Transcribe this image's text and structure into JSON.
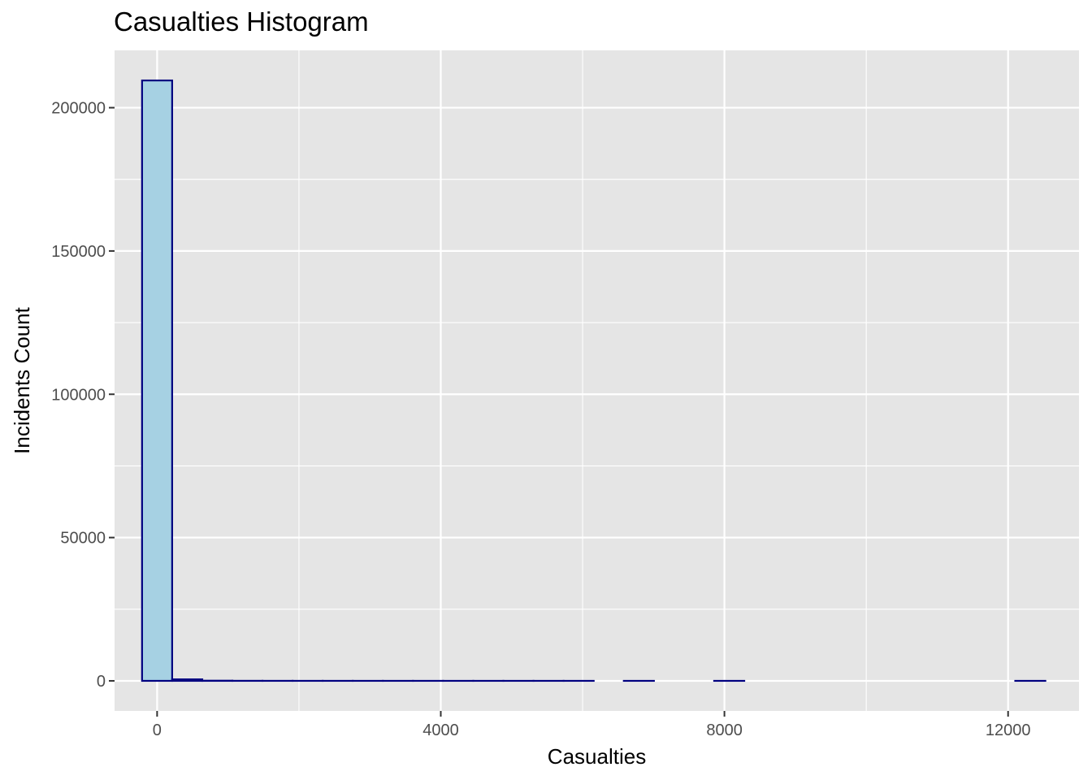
{
  "chart_data": {
    "type": "bar",
    "subtype": "histogram",
    "title": "Casualties Histogram",
    "xlabel": "Casualties",
    "ylabel": "Incidents Count",
    "xlim": [
      -600,
      13000
    ],
    "ylim": [
      -10500,
      220000
    ],
    "x_ticks": [
      0,
      4000,
      8000,
      12000
    ],
    "y_ticks": [
      0,
      50000,
      100000,
      150000,
      200000
    ],
    "x_tick_labels": [
      "0",
      "4000",
      "8000",
      "12000"
    ],
    "y_tick_labels": [
      "0",
      "50000",
      "100000",
      "150000",
      "200000"
    ],
    "grid": true,
    "bin_width": 424.6,
    "bin_start": -212.3,
    "bins": 30,
    "values": [
      209500,
      520,
      60,
      18,
      9,
      5,
      4,
      3,
      2,
      2,
      1,
      1,
      1,
      1,
      1,
      0,
      1,
      0,
      0,
      1,
      0,
      0,
      0,
      0,
      0,
      0,
      0,
      0,
      0,
      1
    ],
    "colors": {
      "fill": "#a6d1e3",
      "outline": "#000080",
      "panel": "#e5e5e5",
      "grid": "#ffffff"
    }
  }
}
